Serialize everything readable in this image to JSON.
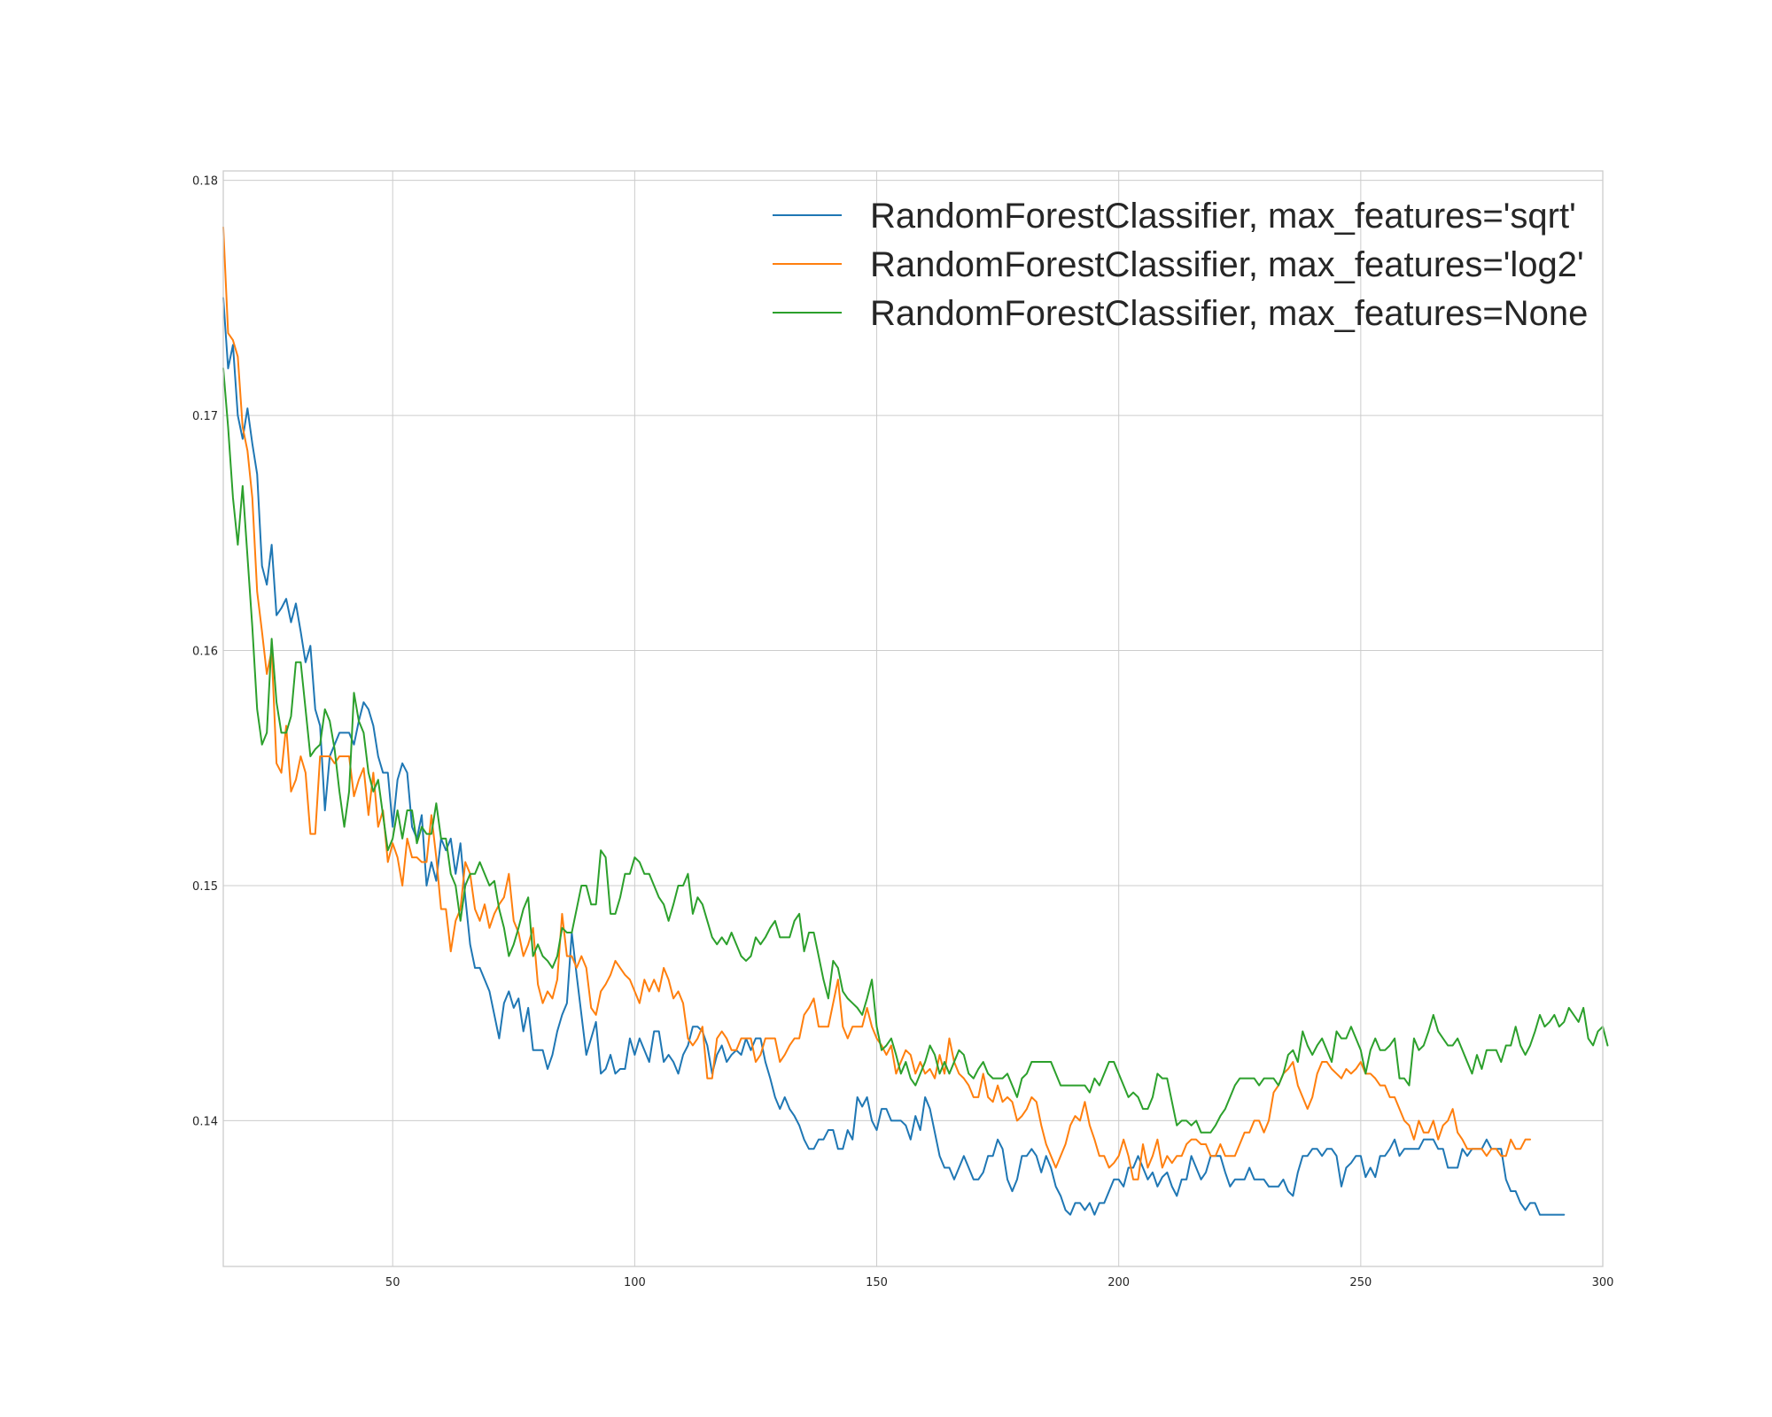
{
  "chart_data": {
    "type": "line",
    "title": "",
    "xlabel": "",
    "ylabel": "",
    "xlim": [
      15,
      300
    ],
    "ylim": [
      0.1338,
      0.1804
    ],
    "xticks": [
      50,
      100,
      150,
      200,
      250,
      300
    ],
    "xtick_labels": [
      "50",
      "100",
      "150",
      "200",
      "250",
      "300"
    ],
    "yticks": [
      0.14,
      0.15,
      0.16,
      0.17,
      0.18
    ],
    "ytick_labels": [
      "0.14",
      "0.15",
      "0.16",
      "0.17",
      "0.18"
    ],
    "grid": true,
    "legend": "top-right",
    "x_start": 15,
    "x_step": 1,
    "series": [
      {
        "name": "RandomForestClassifier, max_features='sqrt'",
        "color": "#1f77b4",
        "values": [
          0.175,
          0.172,
          0.173,
          0.17,
          0.169,
          0.1703,
          0.1688,
          0.1675,
          0.1636,
          0.1628,
          0.1645,
          0.1615,
          0.1618,
          0.1622,
          0.1612,
          0.162,
          0.1608,
          0.1595,
          0.1602,
          0.1575,
          0.1568,
          0.1532,
          0.1555,
          0.156,
          0.1565,
          0.1565,
          0.1565,
          0.156,
          0.157,
          0.1578,
          0.1575,
          0.1568,
          0.1555,
          0.1548,
          0.1548,
          0.1525,
          0.1545,
          0.1552,
          0.1548,
          0.1525,
          0.152,
          0.153,
          0.15,
          0.151,
          0.1502,
          0.152,
          0.1515,
          0.152,
          0.1505,
          0.1518,
          0.1495,
          0.1475,
          0.1465,
          0.1465,
          0.146,
          0.1455,
          0.1445,
          0.1435,
          0.145,
          0.1455,
          0.1448,
          0.1452,
          0.1438,
          0.1448,
          0.143,
          0.143,
          0.143,
          0.1422,
          0.1428,
          0.1438,
          0.1445,
          0.145,
          0.148,
          0.1462,
          0.1445,
          0.1428,
          0.1435,
          0.1442,
          0.142,
          0.1422,
          0.1428,
          0.142,
          0.1422,
          0.1422,
          0.1435,
          0.1428,
          0.1435,
          0.143,
          0.1425,
          0.1438,
          0.1438,
          0.1425,
          0.1428,
          0.1425,
          0.142,
          0.1428,
          0.1432,
          0.144,
          0.144,
          0.1438,
          0.1432,
          0.142,
          0.1428,
          0.1432,
          0.1425,
          0.1428,
          0.143,
          0.1428,
          0.1435,
          0.143,
          0.1435,
          0.1435,
          0.1425,
          0.1418,
          0.141,
          0.1405,
          0.141,
          0.1405,
          0.1402,
          0.1398,
          0.1392,
          0.1388,
          0.1388,
          0.1392,
          0.1392,
          0.1396,
          0.1396,
          0.1388,
          0.1388,
          0.1396,
          0.1392,
          0.141,
          0.1406,
          0.141,
          0.14,
          0.1396,
          0.1405,
          0.1405,
          0.14,
          0.14,
          0.14,
          0.1398,
          0.1392,
          0.1402,
          0.1396,
          0.141,
          0.1405,
          0.1395,
          0.1385,
          0.138,
          0.138,
          0.1375,
          0.138,
          0.1385,
          0.138,
          0.1375,
          0.1375,
          0.1378,
          0.1385,
          0.1385,
          0.1392,
          0.1388,
          0.1375,
          0.137,
          0.1375,
          0.1385,
          0.1385,
          0.1388,
          0.1385,
          0.1378,
          0.1385,
          0.138,
          0.1372,
          0.1368,
          0.1362,
          0.136,
          0.1365,
          0.1365,
          0.1362,
          0.1365,
          0.136,
          0.1365,
          0.1365,
          0.137,
          0.1375,
          0.1375,
          0.1372,
          0.138,
          0.138,
          0.1385,
          0.138,
          0.1375,
          0.1378,
          0.1372,
          0.1376,
          0.1378,
          0.1372,
          0.1368,
          0.1375,
          0.1375,
          0.1385,
          0.138,
          0.1375,
          0.1378,
          0.1385,
          0.1385,
          0.1385,
          0.1378,
          0.1372,
          0.1375,
          0.1375,
          0.1375,
          0.138,
          0.1375,
          0.1375,
          0.1375,
          0.1372,
          0.1372,
          0.1372,
          0.1375,
          0.137,
          0.1368,
          0.1378,
          0.1385,
          0.1385,
          0.1388,
          0.1388,
          0.1385,
          0.1388,
          0.1388,
          0.1385,
          0.1372,
          0.138,
          0.1382,
          0.1385,
          0.1385,
          0.1376,
          0.138,
          0.1376,
          0.1385,
          0.1385,
          0.1388,
          0.1392,
          0.1385,
          0.1388,
          0.1388,
          0.1388,
          0.1388,
          0.1392,
          0.1392,
          0.1392,
          0.1388,
          0.1388,
          0.138,
          0.138,
          0.138,
          0.1388,
          0.1385,
          0.1388,
          0.1388,
          0.1388,
          0.1392,
          0.1388,
          0.1388,
          0.1388,
          0.1375,
          0.137,
          0.137,
          0.1365,
          0.1362,
          0.1365,
          0.1365,
          0.136,
          0.136,
          0.136,
          0.136,
          0.136,
          0.136
        ]
      },
      {
        "name": "RandomForestClassifier, max_features='log2'",
        "color": "#ff7f0e",
        "values": [
          0.178,
          0.1735,
          0.1732,
          0.1725,
          0.1695,
          0.1685,
          0.1665,
          0.1625,
          0.1608,
          0.159,
          0.16,
          0.1552,
          0.1548,
          0.1568,
          0.154,
          0.1545,
          0.1555,
          0.1548,
          0.1522,
          0.1522,
          0.1555,
          0.1555,
          0.1555,
          0.1552,
          0.1555,
          0.1555,
          0.1555,
          0.1538,
          0.1545,
          0.155,
          0.153,
          0.1548,
          0.1525,
          0.1532,
          0.151,
          0.1518,
          0.1512,
          0.15,
          0.152,
          0.1512,
          0.1512,
          0.151,
          0.151,
          0.153,
          0.1512,
          0.149,
          0.149,
          0.1472,
          0.1485,
          0.149,
          0.151,
          0.1505,
          0.149,
          0.1485,
          0.1492,
          0.1482,
          0.1488,
          0.1492,
          0.1495,
          0.1505,
          0.1485,
          0.148,
          0.147,
          0.1475,
          0.1482,
          0.1458,
          0.145,
          0.1455,
          0.1452,
          0.146,
          0.1488,
          0.147,
          0.147,
          0.1465,
          0.147,
          0.1465,
          0.1448,
          0.1445,
          0.1455,
          0.1458,
          0.1462,
          0.1468,
          0.1465,
          0.1462,
          0.146,
          0.1455,
          0.145,
          0.146,
          0.1455,
          0.146,
          0.1455,
          0.1465,
          0.146,
          0.1452,
          0.1455,
          0.145,
          0.1435,
          0.1432,
          0.1435,
          0.144,
          0.1418,
          0.1418,
          0.1435,
          0.1438,
          0.1435,
          0.143,
          0.143,
          0.1435,
          0.1435,
          0.1435,
          0.1425,
          0.1428,
          0.1435,
          0.1435,
          0.1435,
          0.1425,
          0.1428,
          0.1432,
          0.1435,
          0.1435,
          0.1445,
          0.1448,
          0.1452,
          0.144,
          0.144,
          0.144,
          0.145,
          0.146,
          0.144,
          0.1435,
          0.144,
          0.144,
          0.144,
          0.1448,
          0.144,
          0.1435,
          0.1432,
          0.1428,
          0.1432,
          0.142,
          0.1425,
          0.143,
          0.1428,
          0.142,
          0.1425,
          0.142,
          0.1422,
          0.1418,
          0.1428,
          0.142,
          0.1435,
          0.1425,
          0.142,
          0.1418,
          0.1415,
          0.141,
          0.141,
          0.142,
          0.141,
          0.1408,
          0.1415,
          0.1408,
          0.141,
          0.1408,
          0.14,
          0.1402,
          0.1405,
          0.141,
          0.1408,
          0.1398,
          0.139,
          0.1385,
          0.138,
          0.1385,
          0.139,
          0.1398,
          0.1402,
          0.14,
          0.1408,
          0.1398,
          0.1392,
          0.1385,
          0.1385,
          0.138,
          0.1382,
          0.1385,
          0.1392,
          0.1385,
          0.1375,
          0.1375,
          0.139,
          0.138,
          0.1385,
          0.1392,
          0.138,
          0.1385,
          0.1382,
          0.1385,
          0.1385,
          0.139,
          0.1392,
          0.1392,
          0.139,
          0.139,
          0.1385,
          0.1385,
          0.139,
          0.1385,
          0.1385,
          0.1385,
          0.139,
          0.1395,
          0.1395,
          0.14,
          0.14,
          0.1395,
          0.14,
          0.1412,
          0.1415,
          0.142,
          0.1422,
          0.1425,
          0.1415,
          0.141,
          0.1405,
          0.141,
          0.142,
          0.1425,
          0.1425,
          0.1422,
          0.142,
          0.1418,
          0.1422,
          0.142,
          0.1422,
          0.1425,
          0.142,
          0.142,
          0.1418,
          0.1415,
          0.1415,
          0.141,
          0.141,
          0.1405,
          0.14,
          0.1398,
          0.1392,
          0.14,
          0.1395,
          0.1395,
          0.14,
          0.1392,
          0.1398,
          0.14,
          0.1405,
          0.1395,
          0.1392,
          0.1388,
          0.1388,
          0.1388,
          0.1388,
          0.1385,
          0.1388,
          0.1388,
          0.1385,
          0.1385,
          0.1392,
          0.1388,
          0.1388,
          0.1392,
          0.1392
        ]
      },
      {
        "name": "RandomForestClassifier, max_features=None",
        "color": "#2ca02c",
        "values": [
          0.172,
          0.1695,
          0.1665,
          0.1645,
          0.167,
          0.164,
          0.161,
          0.1575,
          0.156,
          0.1565,
          0.1605,
          0.1578,
          0.1565,
          0.1565,
          0.1572,
          0.1595,
          0.1595,
          0.1575,
          0.1555,
          0.1558,
          0.156,
          0.1575,
          0.157,
          0.1558,
          0.154,
          0.1525,
          0.154,
          0.1582,
          0.157,
          0.1565,
          0.1548,
          0.154,
          0.1545,
          0.153,
          0.1515,
          0.152,
          0.1532,
          0.152,
          0.1532,
          0.1532,
          0.1518,
          0.1525,
          0.1522,
          0.1522,
          0.1535,
          0.152,
          0.152,
          0.1505,
          0.15,
          0.1485,
          0.15,
          0.1505,
          0.1505,
          0.151,
          0.1505,
          0.15,
          0.1502,
          0.149,
          0.1482,
          0.147,
          0.1475,
          0.1482,
          0.149,
          0.1495,
          0.147,
          0.1475,
          0.147,
          0.1468,
          0.1465,
          0.147,
          0.1482,
          0.148,
          0.148,
          0.149,
          0.15,
          0.15,
          0.1492,
          0.1492,
          0.1515,
          0.1512,
          0.1488,
          0.1488,
          0.1495,
          0.1505,
          0.1505,
          0.1512,
          0.151,
          0.1505,
          0.1505,
          0.15,
          0.1495,
          0.1492,
          0.1485,
          0.1492,
          0.15,
          0.15,
          0.1505,
          0.1488,
          0.1495,
          0.1492,
          0.1485,
          0.1478,
          0.1475,
          0.1478,
          0.1475,
          0.148,
          0.1475,
          0.147,
          0.1468,
          0.147,
          0.1478,
          0.1475,
          0.1478,
          0.1482,
          0.1485,
          0.1478,
          0.1478,
          0.1478,
          0.1485,
          0.1488,
          0.1472,
          0.148,
          0.148,
          0.147,
          0.146,
          0.1452,
          0.1468,
          0.1465,
          0.1455,
          0.1452,
          0.145,
          0.1448,
          0.1445,
          0.1452,
          0.146,
          0.144,
          0.143,
          0.1432,
          0.1435,
          0.1428,
          0.142,
          0.1425,
          0.1418,
          0.1415,
          0.142,
          0.1425,
          0.1432,
          0.1428,
          0.142,
          0.1425,
          0.142,
          0.1425,
          0.143,
          0.1428,
          0.142,
          0.1418,
          0.1422,
          0.1425,
          0.142,
          0.1418,
          0.1418,
          0.1418,
          0.142,
          0.1415,
          0.141,
          0.1418,
          0.142,
          0.1425,
          0.1425,
          0.1425,
          0.1425,
          0.1425,
          0.142,
          0.1415,
          0.1415,
          0.1415,
          0.1415,
          0.1415,
          0.1415,
          0.1412,
          0.1418,
          0.1415,
          0.142,
          0.1425,
          0.1425,
          0.142,
          0.1415,
          0.141,
          0.1412,
          0.141,
          0.1405,
          0.1405,
          0.141,
          0.142,
          0.1418,
          0.1418,
          0.1408,
          0.1398,
          0.14,
          0.14,
          0.1398,
          0.14,
          0.1395,
          0.1395,
          0.1395,
          0.1398,
          0.1402,
          0.1405,
          0.141,
          0.1415,
          0.1418,
          0.1418,
          0.1418,
          0.1418,
          0.1415,
          0.1418,
          0.1418,
          0.1418,
          0.1415,
          0.142,
          0.1428,
          0.143,
          0.1425,
          0.1438,
          0.1432,
          0.1428,
          0.1432,
          0.1435,
          0.143,
          0.1425,
          0.1438,
          0.1435,
          0.1435,
          0.144,
          0.1435,
          0.143,
          0.142,
          0.143,
          0.1435,
          0.143,
          0.143,
          0.1432,
          0.1435,
          0.1418,
          0.1418,
          0.1415,
          0.1435,
          0.143,
          0.1432,
          0.1438,
          0.1445,
          0.1438,
          0.1435,
          0.1432,
          0.1432,
          0.1435,
          0.143,
          0.1425,
          0.142,
          0.1428,
          0.1422,
          0.143,
          0.143,
          0.143,
          0.1425,
          0.1432,
          0.1432,
          0.144,
          0.1432,
          0.1428,
          0.1432,
          0.1438,
          0.1445,
          0.144,
          0.1442,
          0.1445,
          0.144,
          0.1442,
          0.1448,
          0.1445,
          0.1442,
          0.1448,
          0.1435,
          0.1432,
          0.1438,
          0.144,
          0.1432
        ]
      }
    ]
  }
}
